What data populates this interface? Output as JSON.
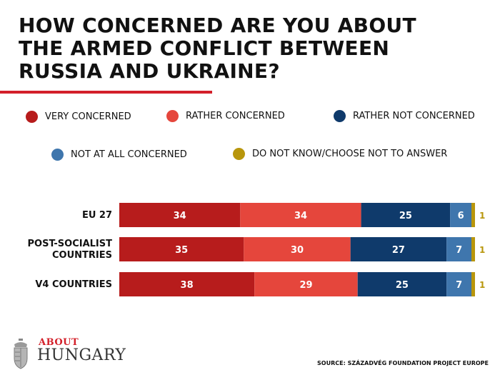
{
  "chart_data": {
    "type": "bar",
    "orientation": "horizontal",
    "stacked": true,
    "title": "HOW CONCERNED ARE YOU ABOUT THE ARMED CONFLICT BETWEEN RUSSIA AND UKRAINE?",
    "categories": [
      "EU 27",
      "POST-SOCIALIST COUNTRIES",
      "V4 COUNTRIES"
    ],
    "series": [
      {
        "name": "VERY CONCERNED",
        "color": "#b71c1c",
        "values": [
          34,
          35,
          38
        ]
      },
      {
        "name": "RATHER CONCERNED",
        "color": "#e5463c",
        "values": [
          34,
          30,
          29
        ]
      },
      {
        "name": "RATHER NOT CONCERNED",
        "color": "#0f3a6b",
        "values": [
          25,
          27,
          25
        ]
      },
      {
        "name": "NOT AT ALL CONCERNED",
        "color": "#3f76ad",
        "values": [
          6,
          7,
          7
        ]
      },
      {
        "name": "DO NOT KNOW/CHOOSE NOT TO ANSWER",
        "color": "#b8960c",
        "values": [
          1,
          1,
          1
        ]
      }
    ],
    "legend_position": "top",
    "xlim": [
      0,
      100
    ],
    "grid": false
  },
  "logo": {
    "small": "ABOUT",
    "big": "HUNGARY"
  },
  "source": "SOURCE: SZÁZADVÉG FOUNDATION PROJECT EUROPE"
}
